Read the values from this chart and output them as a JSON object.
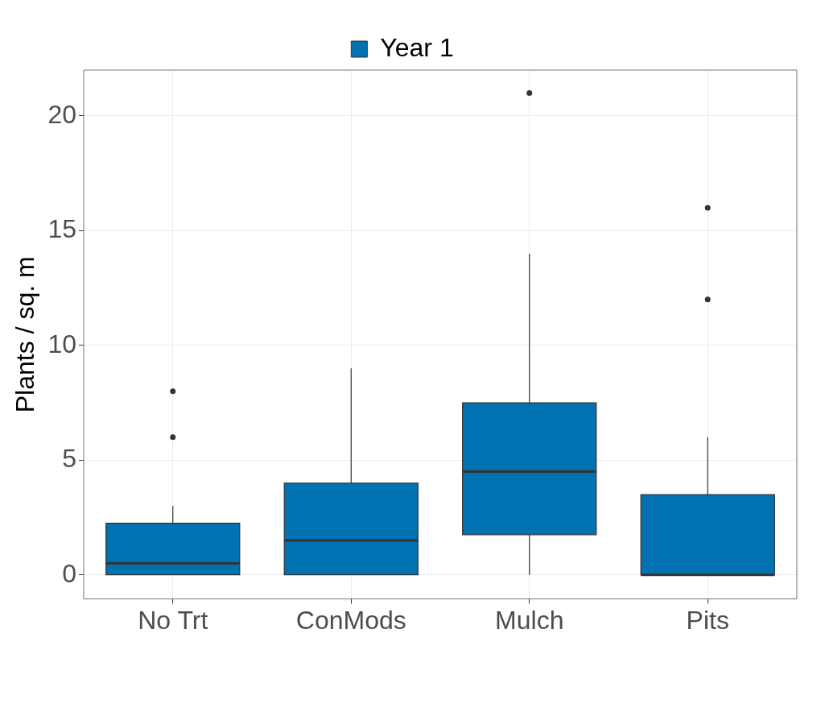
{
  "chart_data": {
    "type": "box",
    "ylabel": "Plants / sq. m",
    "categories": [
      "No Trt",
      "ConMods",
      "Mulch",
      "Pits"
    ],
    "series": [
      {
        "name": "Year 1",
        "color": "#0072b2",
        "boxes": [
          {
            "low": 0,
            "q1": 0,
            "median": 0.5,
            "q3": 2.25,
            "high": 3,
            "outliers": [
              6,
              8
            ]
          },
          {
            "low": 0,
            "q1": 0,
            "median": 1.5,
            "q3": 4,
            "high": 9
          },
          {
            "low": 0,
            "q1": 1.75,
            "median": 4.5,
            "q3": 7.5,
            "high": 14,
            "outliers": [
              21
            ]
          },
          {
            "low": 0,
            "q1": 0,
            "median": 0,
            "q3": 3.5,
            "high": 6,
            "outliers": [
              12,
              16
            ]
          }
        ]
      }
    ],
    "ylim": [
      -1.05,
      22
    ],
    "yticks": [
      0,
      5,
      10,
      15,
      20
    ],
    "grid": true,
    "legend": "top"
  }
}
